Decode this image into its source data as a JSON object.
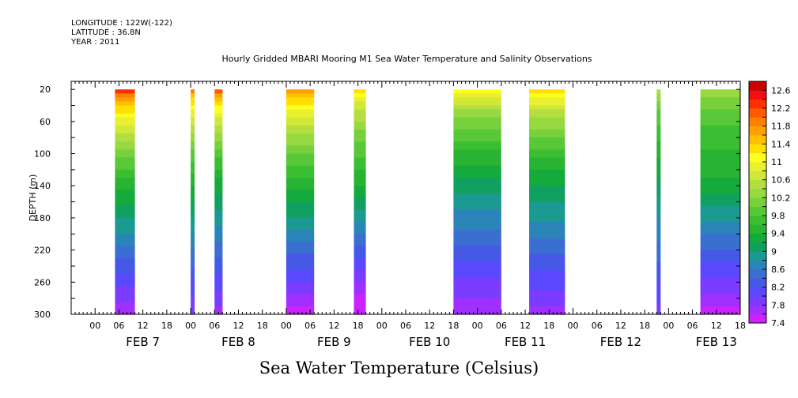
{
  "header": {
    "longitude": "LONGITUDE : 122W(-122)",
    "latitude": "LATITUDE : 36.8N",
    "year": "YEAR : 2011"
  },
  "title": "Hourly Gridded MBARI Mooring M1 Sea Water Temperature and Salinity Observations",
  "footer": "Sea Water Temperature (Celsius)",
  "chart_data": {
    "type": "heatmap",
    "title": "Hourly Gridded MBARI Mooring M1 Sea Water Temperature and Salinity Observations",
    "xlabel": "",
    "ylabel": "DEPTH (m)",
    "colorbar_label": "Sea Water Temperature (Celsius)",
    "x_unit": "hours from FEB 7 00:00 (2011)",
    "xlim": [
      -6,
      162
    ],
    "ylim": [
      300,
      10
    ],
    "y_ticks": [
      20,
      60,
      100,
      140,
      180,
      220,
      260,
      300
    ],
    "x_hour_ticks": [
      "00",
      "06",
      "12",
      "18"
    ],
    "day_labels": [
      "FEB  7",
      "FEB  8",
      "FEB  9",
      "FEB 10",
      "FEB 11",
      "FEB 12",
      "FEB 13"
    ],
    "depth_range": [
      20,
      300
    ],
    "colorbar": {
      "min": 7.4,
      "max": 12.8,
      "step": 0.2,
      "labels": [
        "12.6",
        "12.2",
        "11.8",
        "11.4",
        "11",
        "10.6",
        "10.2",
        "9.8",
        "9.4",
        "9",
        "8.6",
        "8.2",
        "7.8",
        "7.4"
      ],
      "colors": [
        "#cc22ff",
        "#a030ff",
        "#7a3cff",
        "#5a48ff",
        "#4658e6",
        "#3a6ed0",
        "#2a84b8",
        "#1a9a90",
        "#10a060",
        "#14aa3c",
        "#28b432",
        "#3cbe32",
        "#58c838",
        "#78d03c",
        "#98d840",
        "#b4de40",
        "#d0e838",
        "#e8f030",
        "#ffff20",
        "#ffe000",
        "#ffc000",
        "#ffa000",
        "#ff8000",
        "#ff5a00",
        "#ff3000",
        "#f01010",
        "#c80000"
      ]
    },
    "segments": [
      {
        "start": 5,
        "end": 10,
        "surface_temp": 12.5,
        "top_depth": 20,
        "mid_temp": 9.6,
        "bottom_temp": 7.6
      },
      {
        "start": 24,
        "end": 25,
        "surface_temp": 12.1,
        "top_depth": 20,
        "mid_temp": 9.5,
        "bottom_temp": 7.8
      },
      {
        "start": 30,
        "end": 32,
        "surface_temp": 12.3,
        "top_depth": 20,
        "mid_temp": 9.4,
        "bottom_temp": 7.7
      },
      {
        "start": 48,
        "end": 55,
        "surface_temp": 12.0,
        "top_depth": 20,
        "mid_temp": 9.6,
        "bottom_temp": 7.5
      },
      {
        "start": 65,
        "end": 68,
        "surface_temp": 11.4,
        "top_depth": 20,
        "mid_temp": 9.5,
        "bottom_temp": 7.3
      },
      {
        "start": 90,
        "end": 102,
        "surface_temp": 11.3,
        "top_depth": 20,
        "mid_temp": 9.2,
        "bottom_temp": 7.6
      },
      {
        "start": 109,
        "end": 118,
        "surface_temp": 11.6,
        "top_depth": 20,
        "mid_temp": 9.3,
        "bottom_temp": 7.7
      },
      {
        "start": 141,
        "end": 142,
        "surface_temp": 10.6,
        "top_depth": 20,
        "mid_temp": 9.2,
        "bottom_temp": 7.9
      },
      {
        "start": 152,
        "end": 166,
        "surface_temp": 10.4,
        "top_depth": 20,
        "mid_temp": 9.4,
        "bottom_temp": 7.5
      }
    ]
  }
}
